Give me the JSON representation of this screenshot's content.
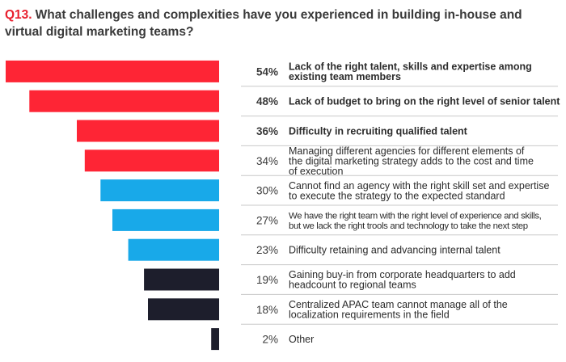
{
  "question": {
    "number": "Q13.",
    "text": "What challenges and complexities have you experienced in building in-house and virtual digital marketing teams?"
  },
  "colors": {
    "red": "#fe2535",
    "blue": "#18a9e9",
    "dark": "#1d1e2c",
    "divider": "#c8c8c8",
    "title_red": "#e8202e"
  },
  "chart_data": {
    "type": "bar",
    "orientation": "horizontal",
    "unit": "%",
    "items": [
      {
        "value": 54,
        "label": "54%",
        "text": [
          "Lack of the right talent, skills and expertise among",
          "existing team members"
        ],
        "bold": true,
        "color": "red"
      },
      {
        "value": 48,
        "label": "48%",
        "text": [
          "Lack of budget to bring on the right level of senior talent"
        ],
        "bold": true,
        "color": "red"
      },
      {
        "value": 36,
        "label": "36%",
        "text": [
          "Difficulty in recruiting qualified talent"
        ],
        "bold": true,
        "color": "red"
      },
      {
        "value": 34,
        "label": "34%",
        "text": [
          "Managing different agencies for different elements of",
          "the digital marketing strategy adds to the cost and time",
          "of execution"
        ],
        "bold": false,
        "color": "red"
      },
      {
        "value": 30,
        "label": "30%",
        "text": [
          "Cannot find an agency with the right skill set and expertise",
          "to execute the strategy to the expected standard"
        ],
        "bold": false,
        "color": "blue"
      },
      {
        "value": 27,
        "label": "27%",
        "text": [
          "We have the right team with the right level of experience and skills,",
          "but we lack the right trools and technology to take the next step"
        ],
        "bold": false,
        "color": "blue",
        "condensed": true
      },
      {
        "value": 23,
        "label": "23%",
        "text": [
          "Difficulty retaining and advancing internal talent"
        ],
        "bold": false,
        "color": "blue"
      },
      {
        "value": 19,
        "label": "19%",
        "text": [
          "Gaining buy-in from corporate headquarters to add",
          "headcount to regional teams"
        ],
        "bold": false,
        "color": "dark"
      },
      {
        "value": 18,
        "label": "18%",
        "text": [
          "Centralized APAC team cannot manage all of the",
          "localization requirements in the field"
        ],
        "bold": false,
        "color": "dark"
      },
      {
        "value": 2,
        "label": "2%",
        "text": [
          "Other"
        ],
        "bold": false,
        "color": "dark"
      }
    ]
  }
}
